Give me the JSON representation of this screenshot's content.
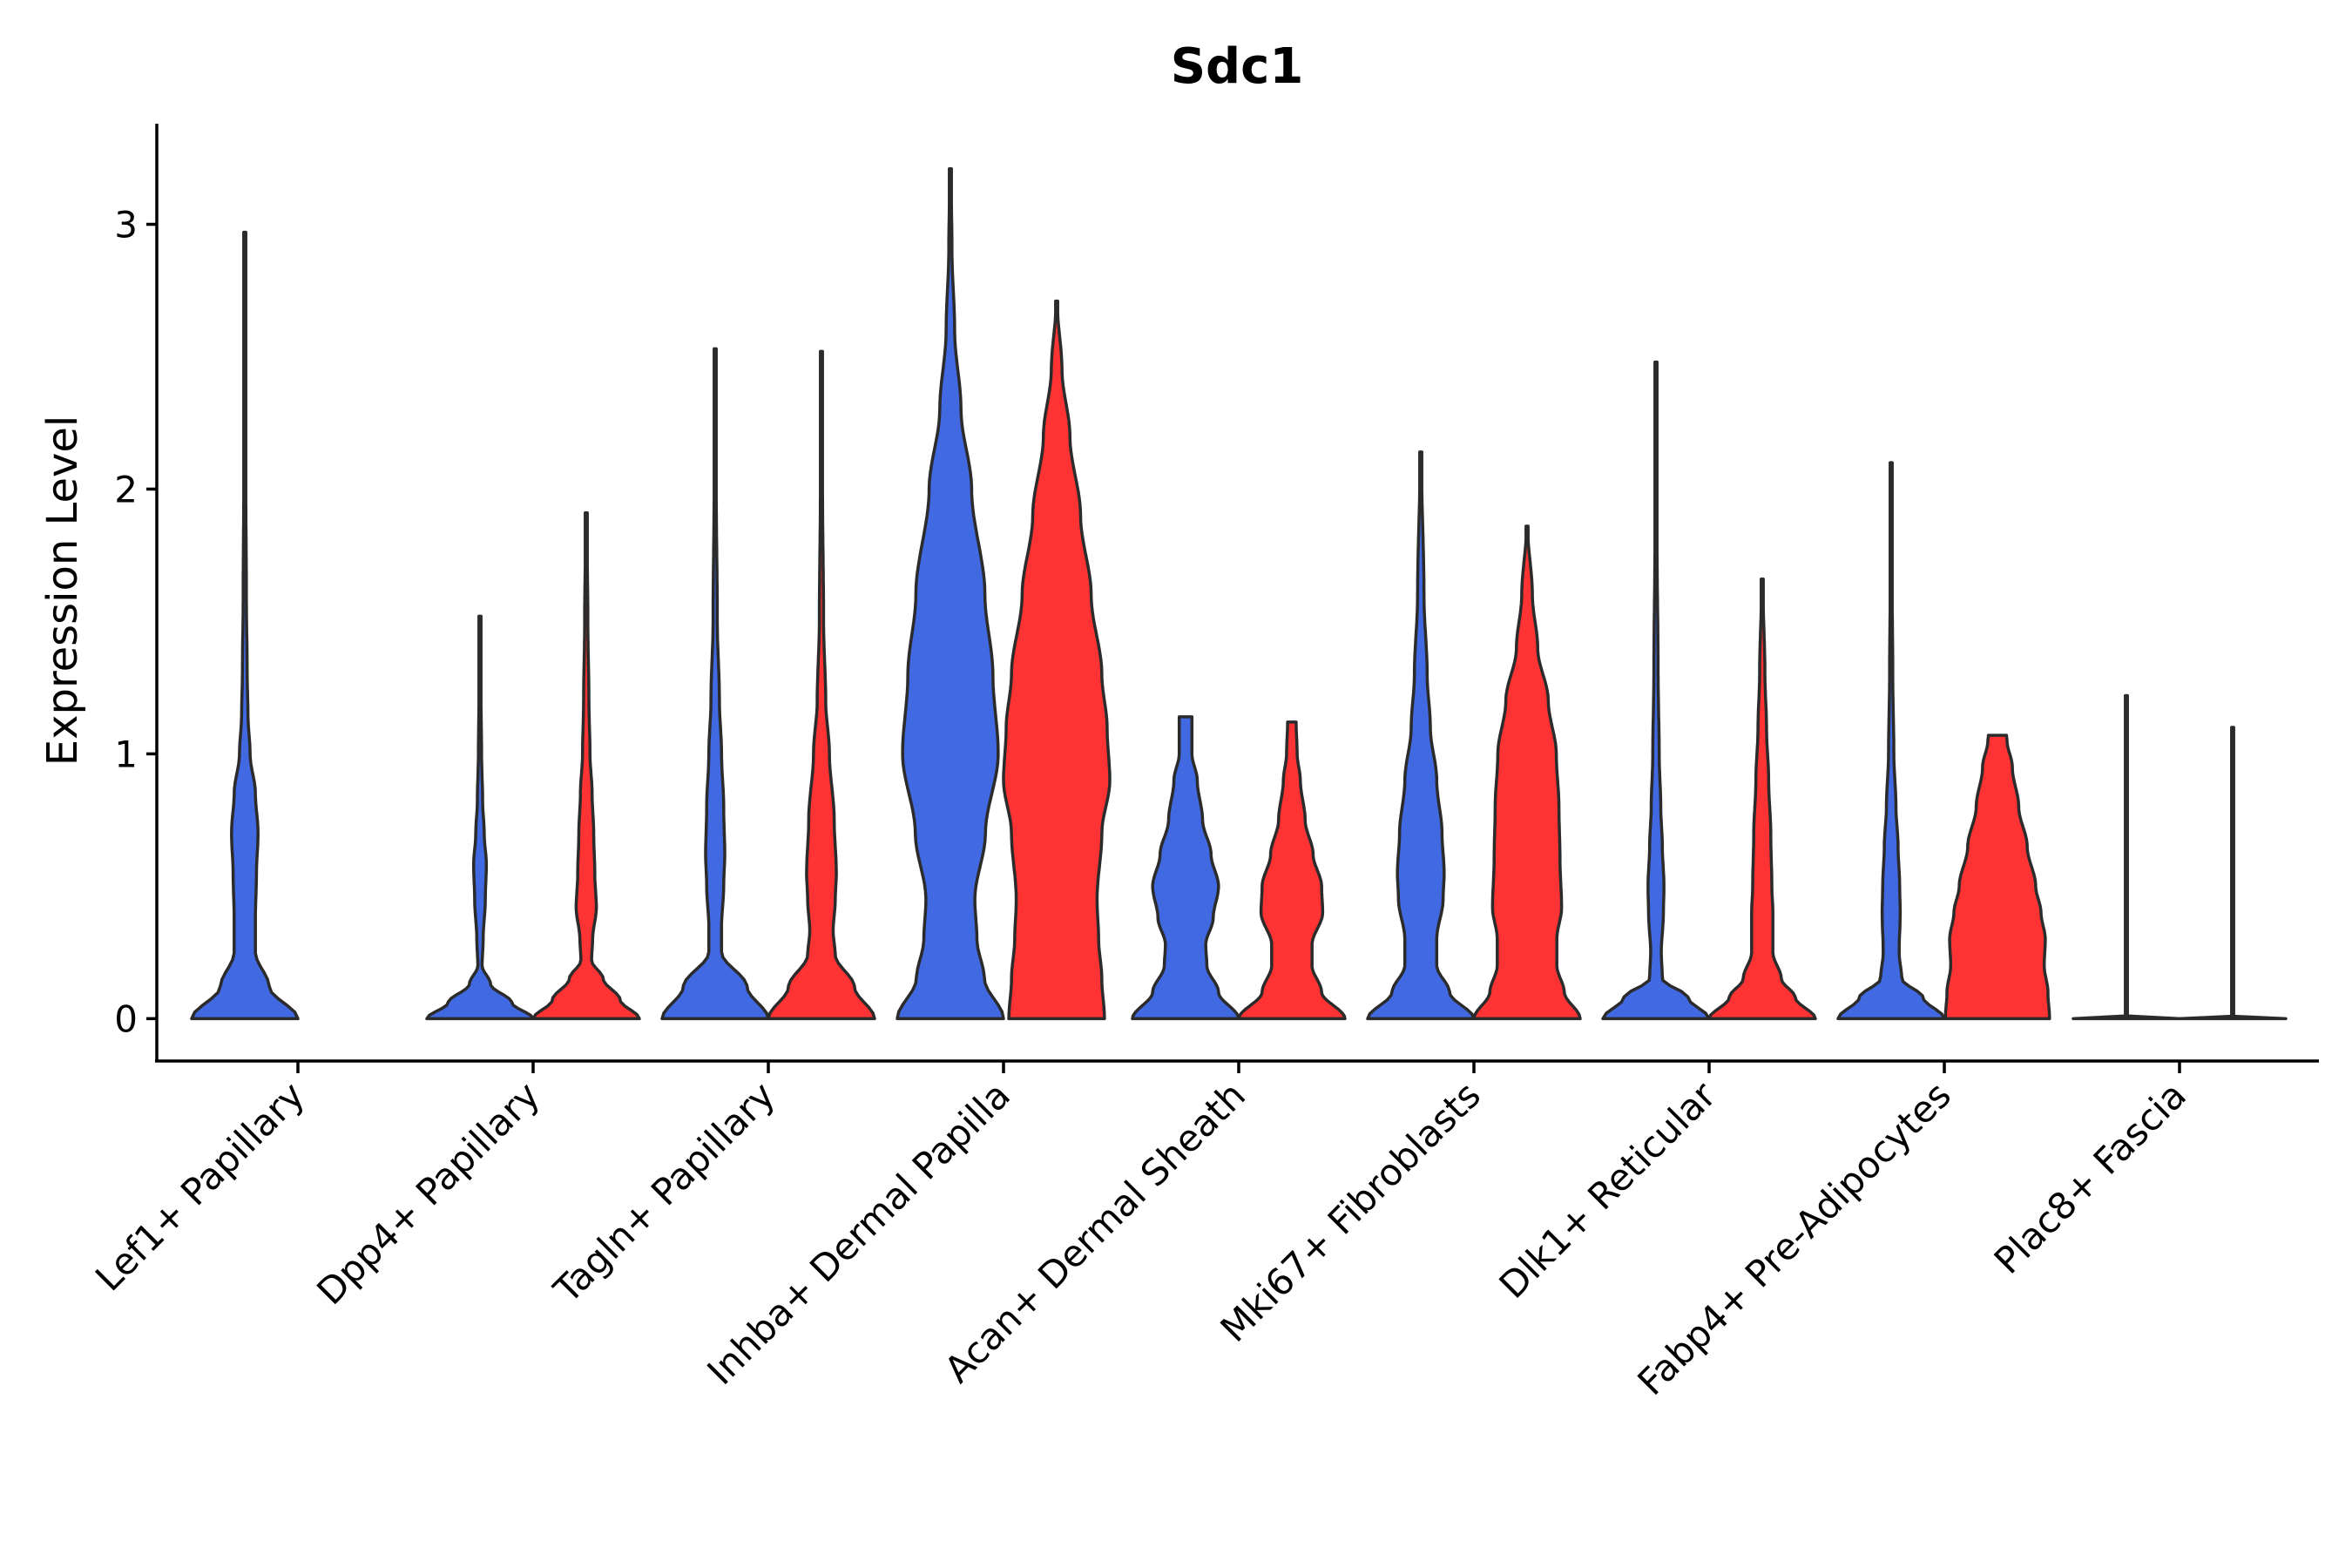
{
  "chart_data": {
    "type": "violin",
    "title": "Sdc1",
    "xlabel": "",
    "ylabel": "Expression Level",
    "ylim": [
      -0.16,
      3.38
    ],
    "yticks": [
      0,
      1,
      2,
      3
    ],
    "colors": {
      "group_a": "#4169E1",
      "group_b": "#FF3333",
      "outline": "#2b2b2b"
    },
    "categories": [
      "Lef1+ Papillary",
      "Dpp4+ Papillary",
      "Tagln+ Papillary",
      "Inhba+ Dermal Papilla",
      "Acan+ Dermal Sheath",
      "Mki67+ Fibroblasts",
      "Dlk1+ Reticular",
      "Fabp4+ Pre-Adipocytes",
      "Plac8+ Fascia"
    ],
    "violins": [
      {
        "category": "Lef1+ Papillary",
        "group": "a",
        "max": 2.97,
        "profile": [
          [
            0,
            1.0
          ],
          [
            0.12,
            0.46
          ],
          [
            0.25,
            0.2
          ],
          [
            0.38,
            0.2
          ],
          [
            0.55,
            0.22
          ],
          [
            0.7,
            0.25
          ],
          [
            0.85,
            0.2
          ],
          [
            1.0,
            0.1
          ],
          [
            1.15,
            0.06
          ],
          [
            1.3,
            0.045
          ],
          [
            1.6,
            0.03
          ],
          [
            2.0,
            0.02
          ],
          [
            2.5,
            0.012
          ],
          [
            2.97,
            0.008
          ]
        ]
      },
      {
        "category": "Dpp4+ Papillary",
        "group": "a",
        "max": 1.52,
        "profile": [
          [
            0,
            1.0
          ],
          [
            0.06,
            0.6
          ],
          [
            0.13,
            0.2
          ],
          [
            0.2,
            0.04
          ],
          [
            0.3,
            0.06
          ],
          [
            0.45,
            0.1
          ],
          [
            0.58,
            0.12
          ],
          [
            0.7,
            0.08
          ],
          [
            0.82,
            0.05
          ],
          [
            1.0,
            0.03
          ],
          [
            1.2,
            0.02
          ],
          [
            1.52,
            0.01
          ]
        ]
      },
      {
        "category": "Dpp4+ Papillary",
        "group": "b",
        "max": 1.91,
        "profile": [
          [
            0,
            1.0
          ],
          [
            0.07,
            0.64
          ],
          [
            0.15,
            0.32
          ],
          [
            0.22,
            0.1
          ],
          [
            0.3,
            0.12
          ],
          [
            0.42,
            0.19
          ],
          [
            0.55,
            0.16
          ],
          [
            0.7,
            0.14
          ],
          [
            0.85,
            0.11
          ],
          [
            1.0,
            0.07
          ],
          [
            1.2,
            0.05
          ],
          [
            1.5,
            0.03
          ],
          [
            1.91,
            0.01
          ]
        ]
      },
      {
        "category": "Tagln+ Papillary",
        "group": "a",
        "max": 2.53,
        "profile": [
          [
            0,
            1.0
          ],
          [
            0.12,
            0.6
          ],
          [
            0.25,
            0.12
          ],
          [
            0.35,
            0.12
          ],
          [
            0.5,
            0.16
          ],
          [
            0.62,
            0.18
          ],
          [
            0.8,
            0.16
          ],
          [
            1.0,
            0.12
          ],
          [
            1.2,
            0.08
          ],
          [
            1.5,
            0.04
          ],
          [
            2.0,
            0.02
          ],
          [
            2.53,
            0.01
          ]
        ]
      },
      {
        "category": "Tagln+ Papillary",
        "group": "b",
        "max": 2.52,
        "profile": [
          [
            0,
            1.0
          ],
          [
            0.12,
            0.62
          ],
          [
            0.24,
            0.26
          ],
          [
            0.33,
            0.22
          ],
          [
            0.45,
            0.26
          ],
          [
            0.55,
            0.28
          ],
          [
            0.75,
            0.24
          ],
          [
            1.0,
            0.15
          ],
          [
            1.2,
            0.08
          ],
          [
            1.5,
            0.04
          ],
          [
            2.0,
            0.02
          ],
          [
            2.52,
            0.01
          ]
        ]
      },
      {
        "category": "Inhba+ Dermal Papilla",
        "group": "a",
        "max": 3.21,
        "profile": [
          [
            0,
            1.0
          ],
          [
            0.15,
            0.64
          ],
          [
            0.3,
            0.5
          ],
          [
            0.45,
            0.46
          ],
          [
            0.7,
            0.66
          ],
          [
            1.0,
            0.9
          ],
          [
            1.3,
            0.8
          ],
          [
            1.6,
            0.65
          ],
          [
            2.0,
            0.4
          ],
          [
            2.3,
            0.2
          ],
          [
            2.6,
            0.08
          ],
          [
            2.9,
            0.03
          ],
          [
            3.21,
            0.01
          ]
        ]
      },
      {
        "category": "Inhba+ Dermal Papilla",
        "group": "b",
        "max": 2.71,
        "profile": [
          [
            0,
            0.9
          ],
          [
            0.15,
            0.85
          ],
          [
            0.3,
            0.79
          ],
          [
            0.45,
            0.76
          ],
          [
            0.7,
            0.85
          ],
          [
            0.9,
            1.0
          ],
          [
            1.1,
            0.95
          ],
          [
            1.3,
            0.85
          ],
          [
            1.6,
            0.65
          ],
          [
            1.9,
            0.45
          ],
          [
            2.2,
            0.25
          ],
          [
            2.45,
            0.1
          ],
          [
            2.71,
            0.01
          ]
        ]
      },
      {
        "category": "Acan+ Dermal Sheath",
        "group": "a",
        "max": 1.14,
        "profile": [
          [
            0,
            1.0
          ],
          [
            0.1,
            0.62
          ],
          [
            0.2,
            0.4
          ],
          [
            0.28,
            0.38
          ],
          [
            0.38,
            0.52
          ],
          [
            0.5,
            0.62
          ],
          [
            0.62,
            0.48
          ],
          [
            0.75,
            0.32
          ],
          [
            0.9,
            0.22
          ],
          [
            1.0,
            0.12
          ],
          [
            1.14,
            0.12
          ]
        ]
      },
      {
        "category": "Acan+ Dermal Sheath",
        "group": "b",
        "max": 1.12,
        "profile": [
          [
            0,
            1.0
          ],
          [
            0.1,
            0.56
          ],
          [
            0.2,
            0.38
          ],
          [
            0.28,
            0.38
          ],
          [
            0.4,
            0.58
          ],
          [
            0.5,
            0.56
          ],
          [
            0.62,
            0.4
          ],
          [
            0.75,
            0.25
          ],
          [
            0.9,
            0.16
          ],
          [
            1.0,
            0.1
          ],
          [
            1.12,
            0.08
          ]
        ]
      },
      {
        "category": "Mki67+ Fibroblasts",
        "group": "a",
        "max": 2.14,
        "profile": [
          [
            0,
            1.0
          ],
          [
            0.1,
            0.54
          ],
          [
            0.2,
            0.3
          ],
          [
            0.3,
            0.3
          ],
          [
            0.45,
            0.42
          ],
          [
            0.55,
            0.44
          ],
          [
            0.7,
            0.4
          ],
          [
            0.9,
            0.3
          ],
          [
            1.1,
            0.18
          ],
          [
            1.3,
            0.12
          ],
          [
            1.6,
            0.06
          ],
          [
            2.14,
            0.01
          ]
        ]
      },
      {
        "category": "Mki67+ Fibroblasts",
        "group": "b",
        "max": 1.86,
        "profile": [
          [
            0,
            1.0
          ],
          [
            0.1,
            0.7
          ],
          [
            0.2,
            0.56
          ],
          [
            0.3,
            0.56
          ],
          [
            0.42,
            0.65
          ],
          [
            0.6,
            0.62
          ],
          [
            0.8,
            0.6
          ],
          [
            1.0,
            0.55
          ],
          [
            1.2,
            0.4
          ],
          [
            1.4,
            0.2
          ],
          [
            1.6,
            0.1
          ],
          [
            1.86,
            0.01
          ]
        ]
      },
      {
        "category": "Dlk1+ Reticular",
        "group": "a",
        "max": 2.48,
        "profile": [
          [
            0,
            1.0
          ],
          [
            0.08,
            0.6
          ],
          [
            0.15,
            0.12
          ],
          [
            0.25,
            0.1
          ],
          [
            0.4,
            0.14
          ],
          [
            0.5,
            0.15
          ],
          [
            0.65,
            0.12
          ],
          [
            0.8,
            0.09
          ],
          [
            1.0,
            0.06
          ],
          [
            1.3,
            0.04
          ],
          [
            1.8,
            0.02
          ],
          [
            2.48,
            0.01
          ]
        ]
      },
      {
        "category": "Dlk1+ Reticular",
        "group": "b",
        "max": 1.66,
        "profile": [
          [
            0,
            1.0
          ],
          [
            0.08,
            0.62
          ],
          [
            0.15,
            0.36
          ],
          [
            0.25,
            0.2
          ],
          [
            0.4,
            0.2
          ],
          [
            0.5,
            0.18
          ],
          [
            0.7,
            0.16
          ],
          [
            0.9,
            0.12
          ],
          [
            1.1,
            0.08
          ],
          [
            1.3,
            0.05
          ],
          [
            1.66,
            0.01
          ]
        ]
      },
      {
        "category": "Fabp4+ Pre-Adipocytes",
        "group": "a",
        "max": 2.1,
        "profile": [
          [
            0,
            1.0
          ],
          [
            0.08,
            0.6
          ],
          [
            0.15,
            0.2
          ],
          [
            0.25,
            0.15
          ],
          [
            0.4,
            0.17
          ],
          [
            0.5,
            0.16
          ],
          [
            0.65,
            0.13
          ],
          [
            0.8,
            0.09
          ],
          [
            1.0,
            0.05
          ],
          [
            1.3,
            0.03
          ],
          [
            1.7,
            0.015
          ],
          [
            2.1,
            0.01
          ]
        ]
      },
      {
        "category": "Fabp4+ Pre-Adipocytes",
        "group": "b",
        "max": 1.07,
        "profile": [
          [
            0,
            0.98
          ],
          [
            0.1,
            0.95
          ],
          [
            0.2,
            0.88
          ],
          [
            0.3,
            0.9
          ],
          [
            0.4,
            0.82
          ],
          [
            0.5,
            0.72
          ],
          [
            0.65,
            0.56
          ],
          [
            0.8,
            0.4
          ],
          [
            0.95,
            0.28
          ],
          [
            1.05,
            0.18
          ],
          [
            1.07,
            0.17
          ]
        ]
      },
      {
        "category": "Plac8+ Fascia",
        "group": "a",
        "max": 1.22,
        "profile": [
          [
            0,
            1.0
          ],
          [
            0.01,
            0.001
          ],
          [
            1.22,
            0.001
          ]
        ]
      },
      {
        "category": "Plac8+ Fascia",
        "group": "b",
        "max": 1.1,
        "profile": [
          [
            0,
            1.0
          ],
          [
            0.01,
            0.001
          ],
          [
            1.1,
            0.001
          ]
        ]
      }
    ]
  }
}
